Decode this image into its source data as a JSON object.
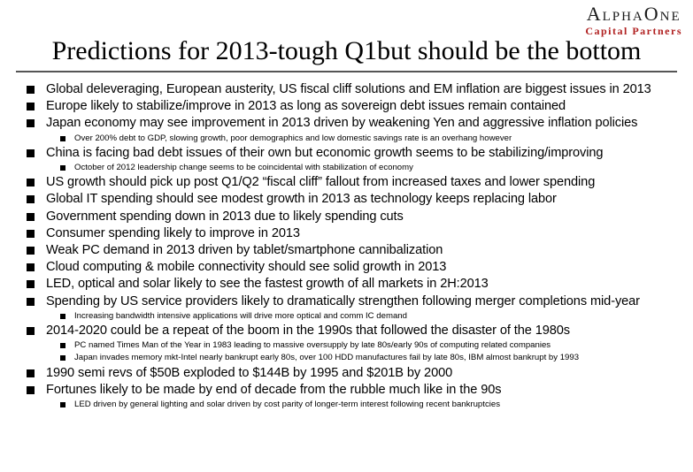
{
  "logo": {
    "name": "AlphaOne",
    "subtitle": "Capital Partners"
  },
  "slide": {
    "title": "Predictions for 2013-tough Q1but should be the bottom"
  },
  "bullets": [
    {
      "level": 1,
      "text": "Global deleveraging, European austerity, US fiscal cliff solutions and EM inflation are biggest issues in 2013"
    },
    {
      "level": 1,
      "text": "Europe likely to stabilize/improve in 2013 as long as sovereign debt issues remain contained"
    },
    {
      "level": 1,
      "text": "Japan economy may see improvement in 2013 driven by weakening Yen and aggressive inflation policies"
    },
    {
      "level": 2,
      "text": "Over 200% debt to GDP, slowing growth, poor demographics and low domestic savings rate is an overhang however"
    },
    {
      "level": 1,
      "text": "China is facing bad debt issues of their own but economic growth seems to be stabilizing/improving"
    },
    {
      "level": 2,
      "text": "October of 2012 leadership change seems to be coincidental with stabilization of economy"
    },
    {
      "level": 1,
      "text": "US growth should pick up post Q1/Q2 “fiscal cliff” fallout from increased taxes and lower spending"
    },
    {
      "level": 1,
      "text": "Global IT spending should see modest growth in 2013 as technology keeps replacing labor"
    },
    {
      "level": 1,
      "text": "Government spending down in 2013 due to likely spending cuts"
    },
    {
      "level": 1,
      "text": "Consumer spending likely to improve in 2013"
    },
    {
      "level": 1,
      "text": "Weak PC demand in 2013 driven by tablet/smartphone cannibalization"
    },
    {
      "level": 1,
      "text": "Cloud computing & mobile connectivity should see solid growth in 2013"
    },
    {
      "level": 1,
      "text": "LED, optical and solar likely to see the fastest growth of all markets in 2H:2013"
    },
    {
      "level": 1,
      "text": "Spending by US service providers likely to dramatically strengthen following merger completions mid-year"
    },
    {
      "level": 2,
      "text": "Increasing bandwidth intensive applications will drive more optical and comm IC demand"
    },
    {
      "level": 1,
      "text": "2014-2020 could be a repeat of the boom in the 1990s that followed the disaster of the 1980s"
    },
    {
      "level": 2,
      "text": "PC named Times Man of the Year in 1983 leading to massive oversupply by late 80s/early 90s  of computing related companies"
    },
    {
      "level": 2,
      "text": "Japan invades memory mkt-Intel nearly bankrupt early 80s, over 100 HDD manufactures fail by late 80s, IBM almost bankrupt by 1993"
    },
    {
      "level": 1,
      "text": "1990 semi revs of $50B exploded to $144B by 1995 and $201B by 2000"
    },
    {
      "level": 1,
      "text": "Fortunes likely to be made by end of decade from the rubble much like in the 90s"
    },
    {
      "level": 2,
      "text": "LED driven by general lighting and solar driven by cost parity of longer-term interest following recent bankruptcies"
    }
  ]
}
